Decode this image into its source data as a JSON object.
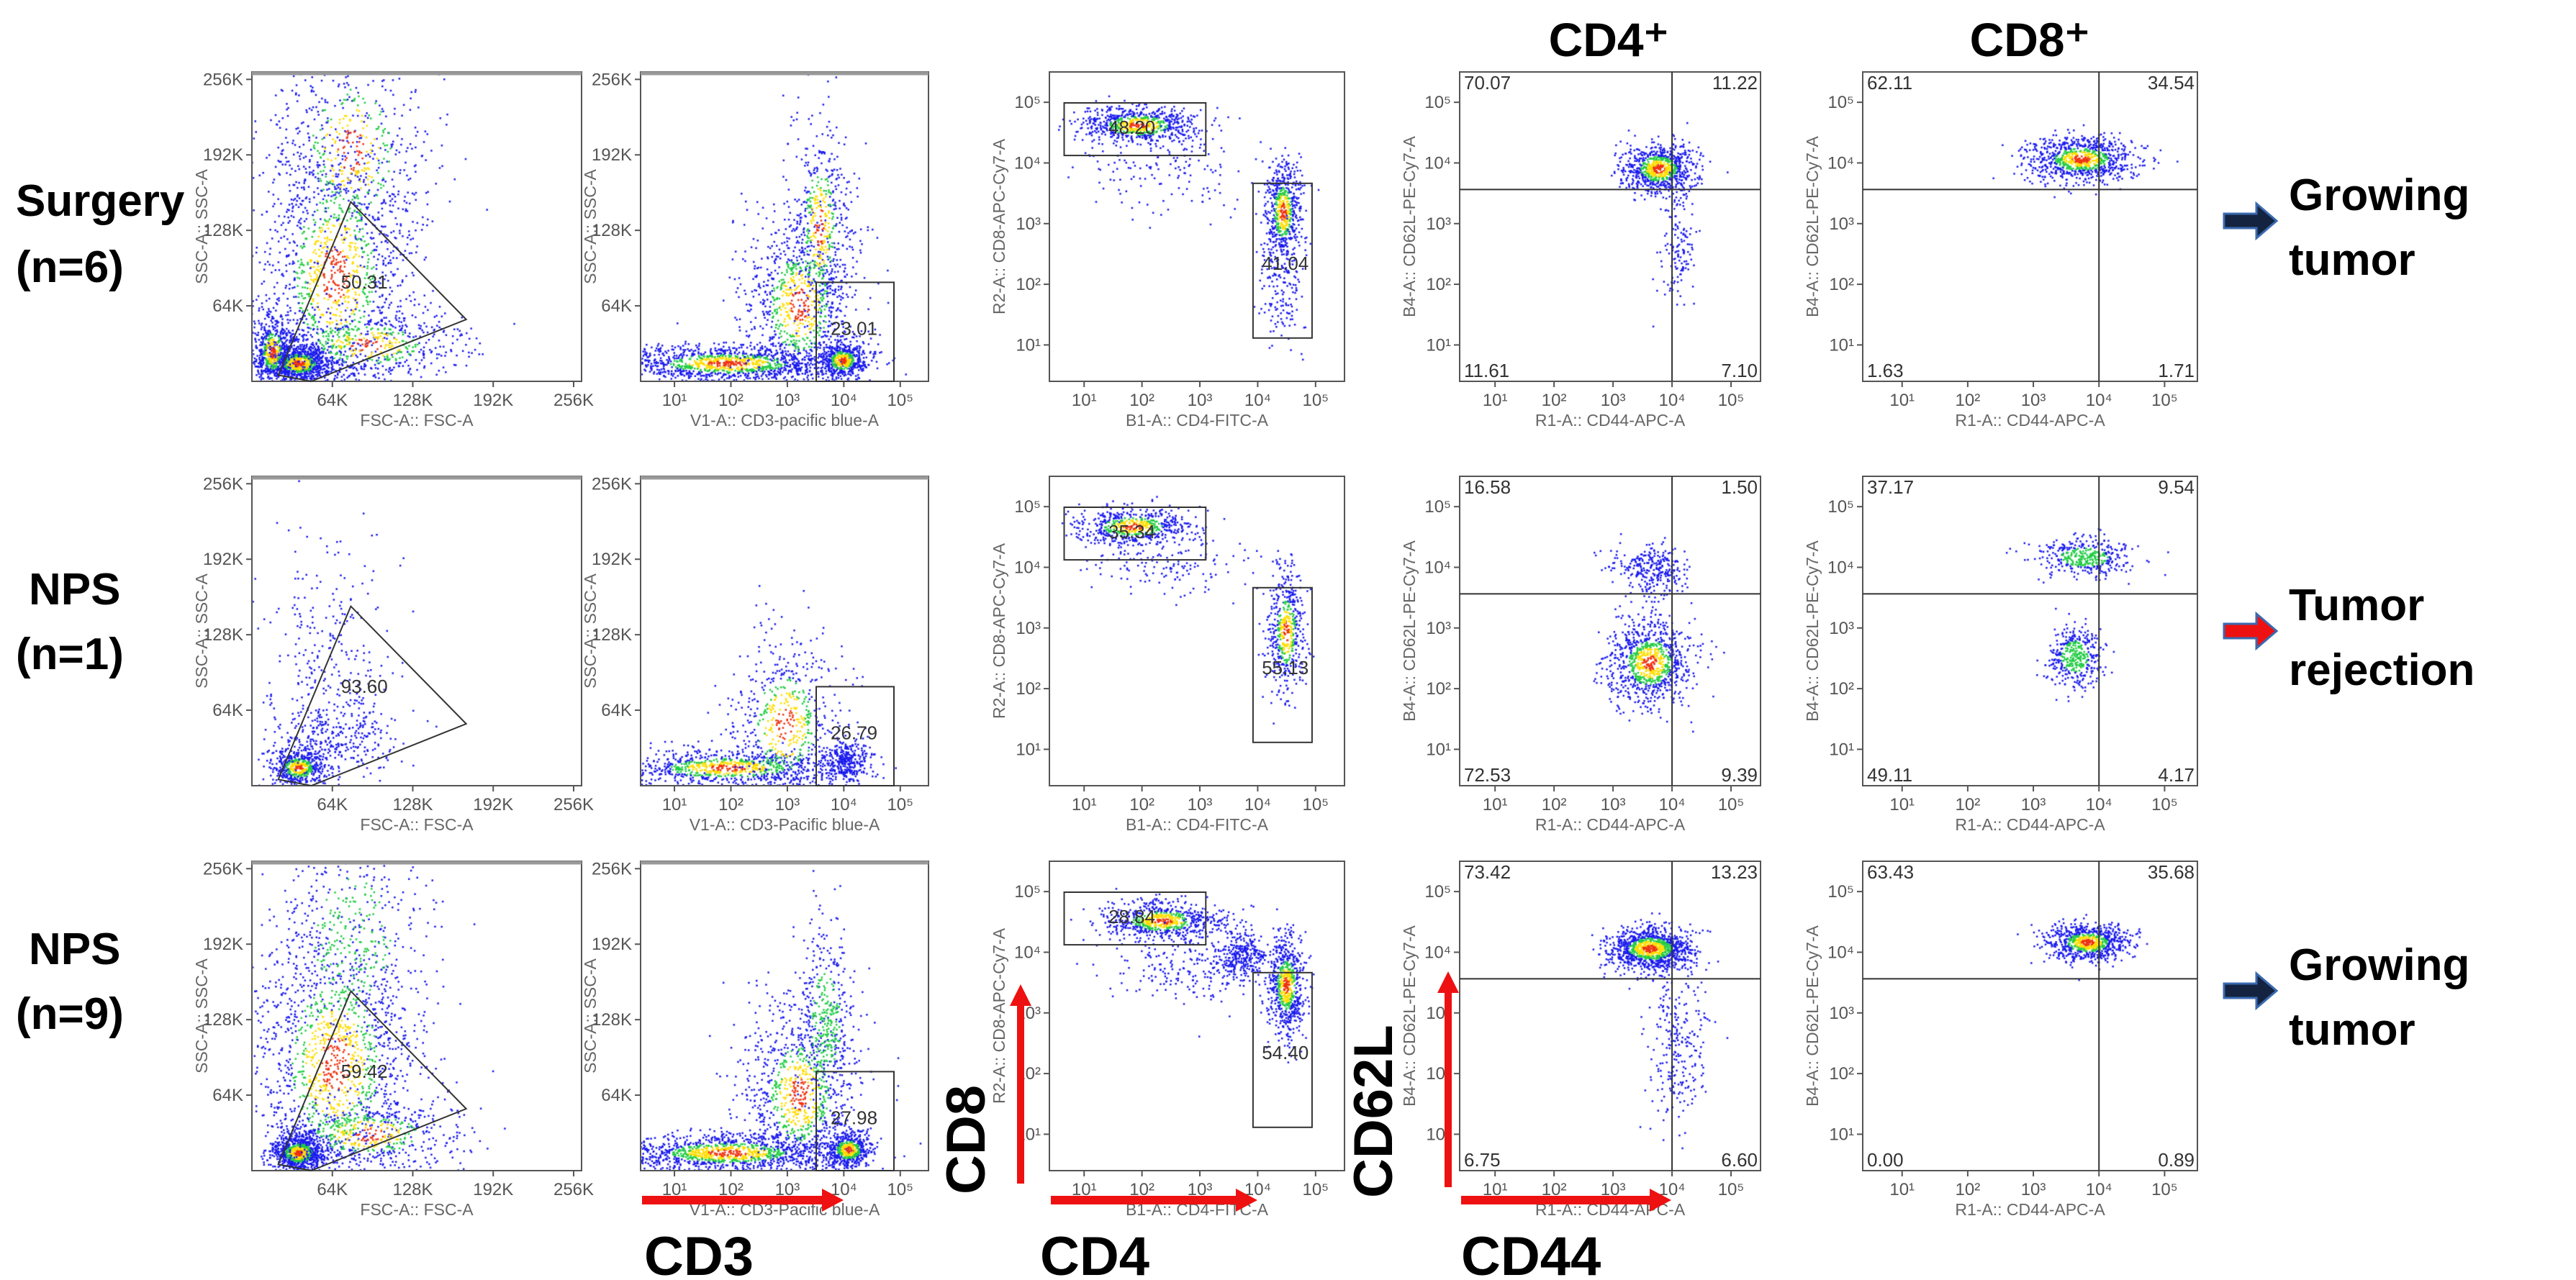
{
  "chart_data": {
    "type": "scatter",
    "column_headers": [
      "CD4⁺",
      "CD8⁺"
    ],
    "axes": {
      "linear_ticks": [
        "64K",
        "128K",
        "192K",
        "256K"
      ],
      "log_ticks": [
        "10¹",
        "10²",
        "10³",
        "10⁴",
        "10⁵"
      ]
    },
    "markers": {
      "cd3": "CD3",
      "cd4": "CD4",
      "cd8": "CD8",
      "cd62l": "CD62L",
      "cd44": "CD44"
    },
    "colors": {
      "red_arrow": "#ee1111",
      "dark_arrow": "#14233f",
      "points": "#1a1aee"
    },
    "rows": [
      {
        "label": "Surgery",
        "n": "(n=6)",
        "outcome": [
          "Growing",
          "tumor"
        ],
        "arrow_color": "#14233f",
        "panels": [
          {
            "x_label": "FSC-A:: FSC-A",
            "y_label": "SSC-A:: SSC-A",
            "gates": [
              "50.31"
            ]
          },
          {
            "x_label": "V1-A:: CD3-pacific blue-A",
            "y_label": "SSC-A:: SSC-A",
            "gates": [
              "23.01"
            ]
          },
          {
            "x_label": "B1-A:: CD4-FITC-A",
            "y_label": "R2-A:: CD8-APC-Cy7-A",
            "gates": [
              "48.20",
              "41.04"
            ]
          },
          {
            "x_label": "R1-A:: CD44-APC-A",
            "y_label": "B4-A:: CD62L-PE-Cy7-A",
            "quadrants": {
              "ul": "70.07",
              "ur": "11.22",
              "ll": "11.61",
              "lr": "7.10"
            }
          },
          {
            "x_label": "R1-A:: CD44-APC-A",
            "y_label": "B4-A:: CD62L-PE-Cy7-A",
            "quadrants": {
              "ul": "62.11",
              "ur": "34.54",
              "ll": "1.63",
              "lr": "1.71"
            }
          }
        ]
      },
      {
        "label": "NPS",
        "n": "(n=1)",
        "outcome": [
          "Tumor",
          "rejection"
        ],
        "arrow_color": "#ee1111",
        "panels": [
          {
            "x_label": "FSC-A:: FSC-A",
            "y_label": "SSC-A:: SSC-A",
            "gates": [
              "93.60"
            ]
          },
          {
            "x_label": "V1-A:: CD3-Pacific blue-A",
            "y_label": "SSC-A:: SSC-A",
            "gates": [
              "26.79"
            ]
          },
          {
            "x_label": "B1-A:: CD4-FITC-A",
            "y_label": "R2-A:: CD8-APC-Cy7-A",
            "gates": [
              "35.34",
              "55.13"
            ]
          },
          {
            "x_label": "R1-A:: CD44-APC-A",
            "y_label": "B4-A:: CD62L-PE-Cy7-A",
            "quadrants": {
              "ul": "16.58",
              "ur": "1.50",
              "ll": "72.53",
              "lr": "9.39"
            }
          },
          {
            "x_label": "R1-A:: CD44-APC-A",
            "y_label": "B4-A:: CD62L-PE-Cy7-A",
            "quadrants": {
              "ul": "37.17",
              "ur": "9.54",
              "ll": "49.11",
              "lr": "4.17"
            }
          }
        ]
      },
      {
        "label": "NPS",
        "n": "(n=9)",
        "outcome": [
          "Growing",
          "tumor"
        ],
        "arrow_color": "#14233f",
        "panels": [
          {
            "x_label": "FSC-A:: FSC-A",
            "y_label": "SSC-A:: SSC-A",
            "gates": [
              "59.42"
            ]
          },
          {
            "x_label": "V1-A:: CD3-Pacific blue-A",
            "y_label": "SSC-A:: SSC-A",
            "gates": [
              "27.98"
            ]
          },
          {
            "x_label": "B1-A:: CD4-FITC-A",
            "y_label": "R2-A:: CD8-APC-Cy7-A",
            "gates": [
              "28.84",
              "54.40"
            ]
          },
          {
            "x_label": "R1-A:: CD44-APC-A",
            "y_label": "B4-A:: CD62L-PE-Cy7-A",
            "quadrants": {
              "ul": "73.42",
              "ur": "13.23",
              "ll": "6.75",
              "lr": "6.60"
            }
          },
          {
            "x_label": "R1-A:: CD44-APC-A",
            "y_label": "B4-A:: CD62L-PE-Cy7-A",
            "quadrants": {
              "ul": "63.43",
              "ur": "35.68",
              "ll": "0.00",
              "lr": "0.89"
            }
          }
        ]
      }
    ]
  }
}
